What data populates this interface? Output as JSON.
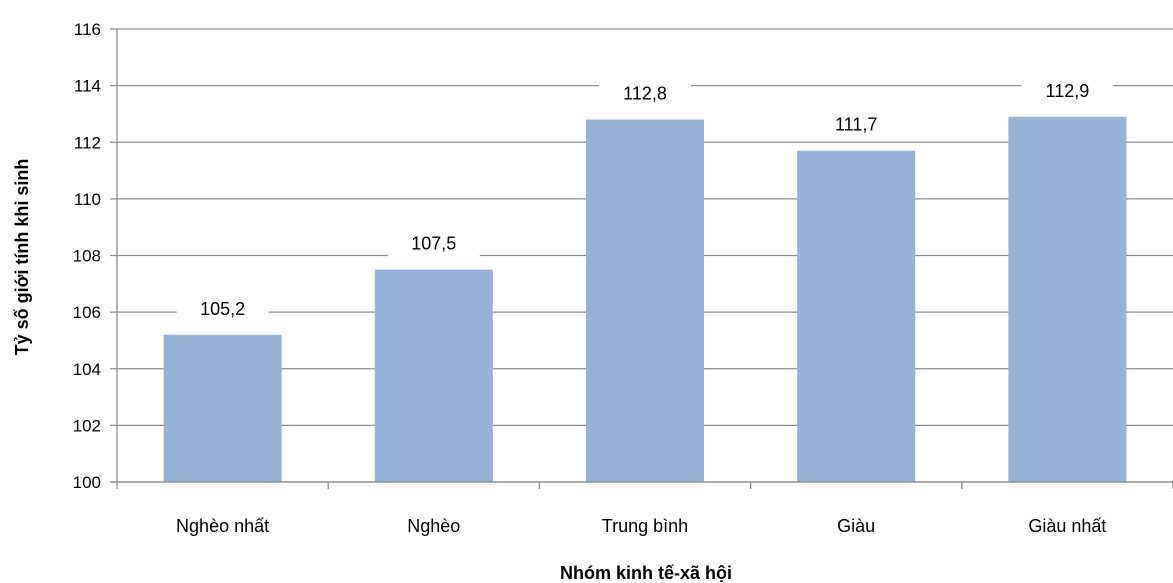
{
  "chart_data": {
    "type": "bar",
    "title": "",
    "xlabel": "Nhóm kinh tế-xã  hội",
    "ylabel": "Tỷ số giới tính khi sinh",
    "categories": [
      "Nghèo nhất",
      "Nghèo",
      "Trung bình",
      "Giàu",
      "Giàu nhất"
    ],
    "values": [
      105.2,
      107.5,
      112.8,
      111.7,
      112.9
    ],
    "data_labels": [
      "105,2",
      "107,5",
      "112,8",
      "111,7",
      "112,9"
    ],
    "ylim": [
      100,
      116
    ],
    "yticks": [
      100,
      102,
      104,
      106,
      108,
      110,
      112,
      114,
      116
    ],
    "grid": true,
    "legend": "none",
    "colors": {
      "bar": "#95b3d7",
      "grid": "#8c8c8c",
      "axis": "#8c8c8c"
    }
  }
}
